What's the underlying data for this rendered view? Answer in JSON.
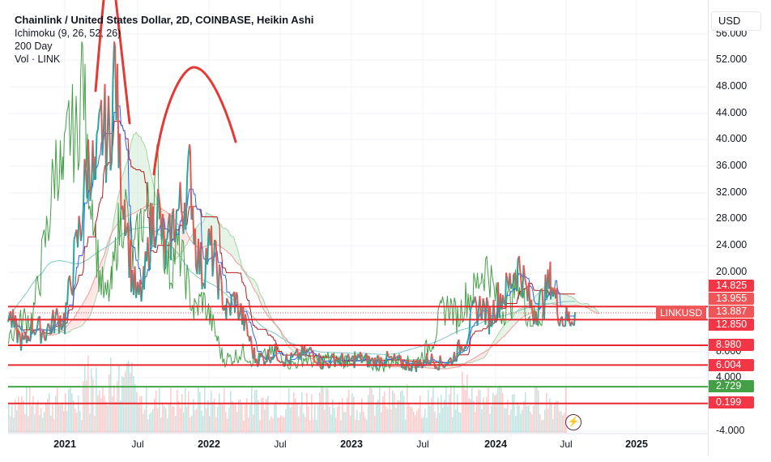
{
  "header": {
    "title": "Chainlink / United States Dollar, 2D, COINBASE, Heikin Ashi",
    "indicators": [
      "Ichimoku (9, 26, 52, 26)",
      "200 Day",
      "Vol · LINK"
    ],
    "currency_button": "USD"
  },
  "symbol_tag": "LINKUSD",
  "colors": {
    "up": "#26a69a",
    "down": "#ef5350",
    "level_red": "#e8282f",
    "level_green": "#3fa845",
    "cloud_bull": "#c8e6c9",
    "cloud_bear": "#fcd4d4",
    "tenkan": "#2962ff",
    "kijun": "#b71c1c",
    "chikou": "#43a047",
    "ma200": "#7ec8c3",
    "annotation": "#e53935"
  },
  "price_axis": {
    "ticks": [
      "56.000",
      "52.000",
      "48.000",
      "44.000",
      "40.000",
      "36.000",
      "32.000",
      "28.000",
      "24.000",
      "20.000",
      "8.000",
      "4.000",
      "-4.000"
    ]
  },
  "time_axis": {
    "ticks": [
      {
        "label": "2021",
        "major": true
      },
      {
        "label": "Jul",
        "major": false
      },
      {
        "label": "2022",
        "major": true
      },
      {
        "label": "Jul",
        "major": false
      },
      {
        "label": "2023",
        "major": true
      },
      {
        "label": "Jul",
        "major": false
      },
      {
        "label": "2024",
        "major": true
      },
      {
        "label": "Jul",
        "major": false
      },
      {
        "label": "2025",
        "major": true
      }
    ]
  },
  "price_labels": [
    {
      "value": "14.825",
      "color": "#f23645"
    },
    {
      "value": "13.955",
      "color": "#f05658"
    },
    {
      "value": "13.887",
      "color": "#f05658"
    },
    {
      "value": "12.850",
      "color": "#f23645"
    },
    {
      "value": "8.980",
      "color": "#f23645"
    },
    {
      "value": "6.004",
      "color": "#f23645"
    },
    {
      "value": "2.729",
      "color": "#43a047"
    },
    {
      "value": "0.199",
      "color": "#f23645"
    }
  ],
  "chart_data": {
    "type": "line",
    "title": "Chainlink / United States Dollar, 2D, COINBASE, Heikin Ashi",
    "xlabel": "",
    "ylabel": "USD",
    "ylim": [
      -4,
      56
    ],
    "grid": true,
    "x_ticks": [
      "2021",
      "Jul",
      "2022",
      "Jul",
      "2023",
      "Jul",
      "2024",
      "Jul",
      "2025"
    ],
    "y_ticks": [
      -4,
      4,
      8,
      20,
      24,
      28,
      32,
      36,
      40,
      44,
      48,
      52,
      56
    ],
    "horizontal_levels": [
      {
        "price": 14.825,
        "color": "red"
      },
      {
        "price": 12.85,
        "color": "red"
      },
      {
        "price": 8.98,
        "color": "red"
      },
      {
        "price": 6.004,
        "color": "red"
      },
      {
        "price": 2.729,
        "color": "green"
      },
      {
        "price": 0.199,
        "color": "red"
      }
    ],
    "current_price": 13.887,
    "series": [
      {
        "name": "LINKUSD Heikin Ashi close (approx)",
        "x": [
          "2020-09",
          "2020-10",
          "2020-11",
          "2020-12",
          "2021-01",
          "2021-02",
          "2021-03",
          "2021-04",
          "2021-05",
          "2021-06",
          "2021-07",
          "2021-08",
          "2021-09",
          "2021-10",
          "2021-11",
          "2021-12",
          "2022-01",
          "2022-02",
          "2022-03",
          "2022-04",
          "2022-05",
          "2022-06",
          "2022-07",
          "2022-08",
          "2022-09",
          "2022-10",
          "2022-11",
          "2022-12",
          "2023-01",
          "2023-02",
          "2023-03",
          "2023-04",
          "2023-05",
          "2023-06",
          "2023-07",
          "2023-08",
          "2023-09",
          "2023-10",
          "2023-11",
          "2023-12",
          "2024-01",
          "2024-02",
          "2024-03",
          "2024-04",
          "2024-05",
          "2024-06",
          "2024-07"
        ],
        "values": [
          14,
          11,
          13,
          12,
          20,
          30,
          28,
          36,
          45,
          24,
          20,
          26,
          30,
          26,
          30,
          24,
          20,
          15,
          16,
          14,
          8,
          6.5,
          7,
          8,
          7.5,
          7,
          6.5,
          6,
          6.5,
          7,
          7,
          7,
          6.5,
          6,
          6.5,
          6,
          6.5,
          9,
          14,
          15,
          15,
          19,
          20,
          15,
          15,
          14,
          14
        ]
      },
      {
        "name": "200 Day MA (approx)",
        "values_start": 8,
        "values_peak": 27,
        "values_end": 14
      }
    ],
    "annotations": [
      "red hand-drawn arc over 2021 peak",
      "red hand-drawn arc over late-2021 high"
    ]
  }
}
